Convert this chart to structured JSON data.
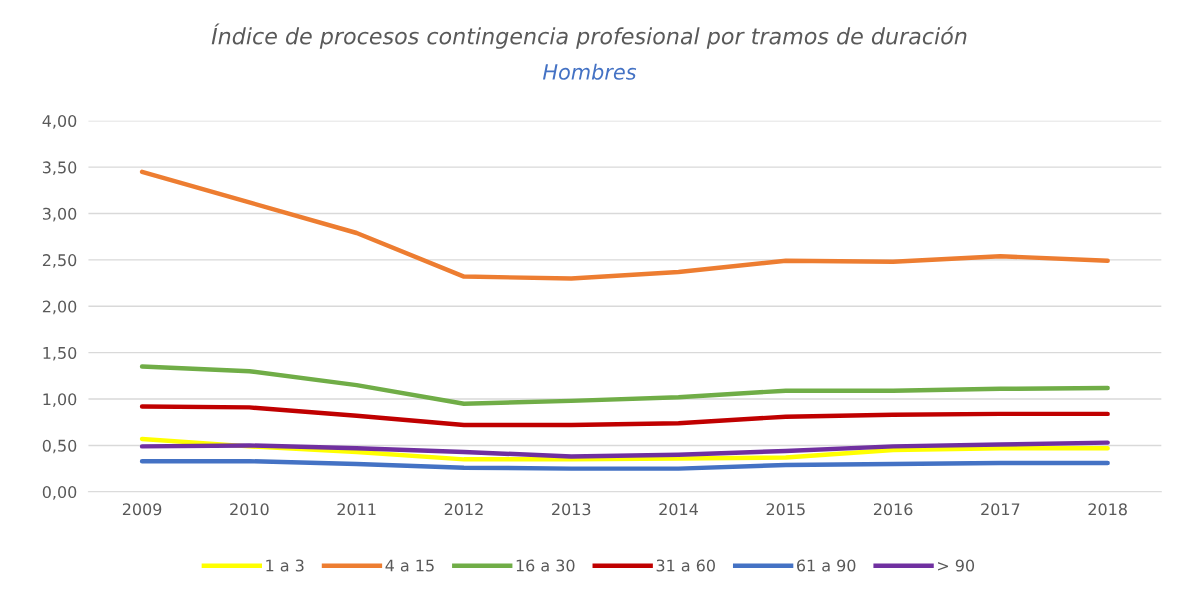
{
  "chart_data": {
    "type": "line",
    "title": "Índice de procesos contingencia profesional por tramos de duración",
    "subtitle": "Hombres",
    "categories": [
      "2009",
      "2010",
      "2011",
      "2012",
      "2013",
      "2014",
      "2015",
      "2016",
      "2017",
      "2018"
    ],
    "series": [
      {
        "name": "1 a 3",
        "color": "#ffff00",
        "values": [
          0.57,
          0.49,
          0.43,
          0.35,
          0.35,
          0.36,
          0.37,
          0.45,
          0.47,
          0.47
        ]
      },
      {
        "name": "4 a 15",
        "color": "#ed7d31",
        "values": [
          3.45,
          3.12,
          2.79,
          2.32,
          2.3,
          2.37,
          2.49,
          2.48,
          2.54,
          2.49
        ]
      },
      {
        "name": "16 a 30",
        "color": "#70ad47",
        "values": [
          1.35,
          1.3,
          1.15,
          0.95,
          0.98,
          1.02,
          1.09,
          1.09,
          1.11,
          1.12
        ]
      },
      {
        "name": "31 a 60",
        "color": "#c00000",
        "values": [
          0.92,
          0.91,
          0.82,
          0.72,
          0.72,
          0.74,
          0.81,
          0.83,
          0.84,
          0.84
        ]
      },
      {
        "name": "61 a 90",
        "color": "#4472c4",
        "values": [
          0.33,
          0.33,
          0.3,
          0.26,
          0.25,
          0.25,
          0.29,
          0.3,
          0.31,
          0.31
        ]
      },
      {
        "name": "> 90",
        "color": "#7030a0",
        "values": [
          0.49,
          0.5,
          0.47,
          0.43,
          0.38,
          0.4,
          0.44,
          0.49,
          0.51,
          0.53
        ]
      }
    ],
    "ylim": [
      0,
      4
    ],
    "yticks": [
      {
        "value": 0,
        "label": "0,00"
      },
      {
        "value": 0.5,
        "label": "0,50"
      },
      {
        "value": 1,
        "label": "1,00"
      },
      {
        "value": 1.5,
        "label": "1,50"
      },
      {
        "value": 2,
        "label": "2,00"
      },
      {
        "value": 2.5,
        "label": "2,50"
      },
      {
        "value": 3,
        "label": "3,00"
      },
      {
        "value": 3.5,
        "label": "3,50"
      },
      {
        "value": 4,
        "label": "4,00"
      }
    ],
    "grid": "y",
    "legend": "bottom",
    "marker": "none",
    "line_style": "solid"
  }
}
